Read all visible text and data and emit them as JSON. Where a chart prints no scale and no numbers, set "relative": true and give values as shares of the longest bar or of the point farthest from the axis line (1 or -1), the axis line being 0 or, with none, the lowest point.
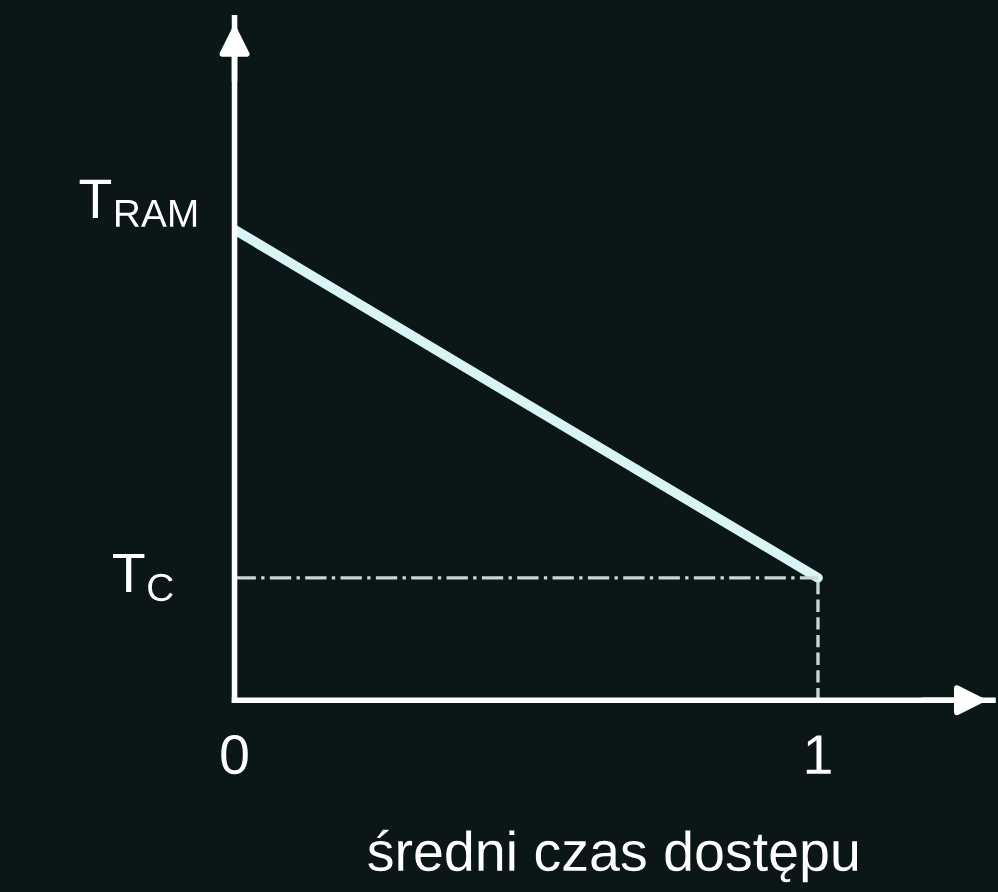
{
  "chart_data": {
    "type": "line",
    "relative": true,
    "xlabel": "średni czas dostępu",
    "x": [
      0,
      1
    ],
    "xlim": [
      0,
      1.3
    ],
    "xticks": [
      0,
      1
    ],
    "series": [
      {
        "color": "#d8f4f4",
        "values": [
          1,
          0.26
        ]
      }
    ],
    "ref_lines": [
      {
        "axis": "y",
        "value": 0.26,
        "label": "T$_{C}$",
        "line_style": "dashdot",
        "color": "#c8d8d8"
      },
      {
        "axis": "x",
        "value": 1,
        "label": null,
        "line_style": "dashed",
        "color": "#c8d8d8"
      }
    ],
    "annotations": [
      {
        "text": "T$_{RAM}$",
        "x": 0,
        "y": 1
      }
    ],
    "grid": false,
    "legend": false,
    "marker": "none",
    "line_style": "solid"
  }
}
